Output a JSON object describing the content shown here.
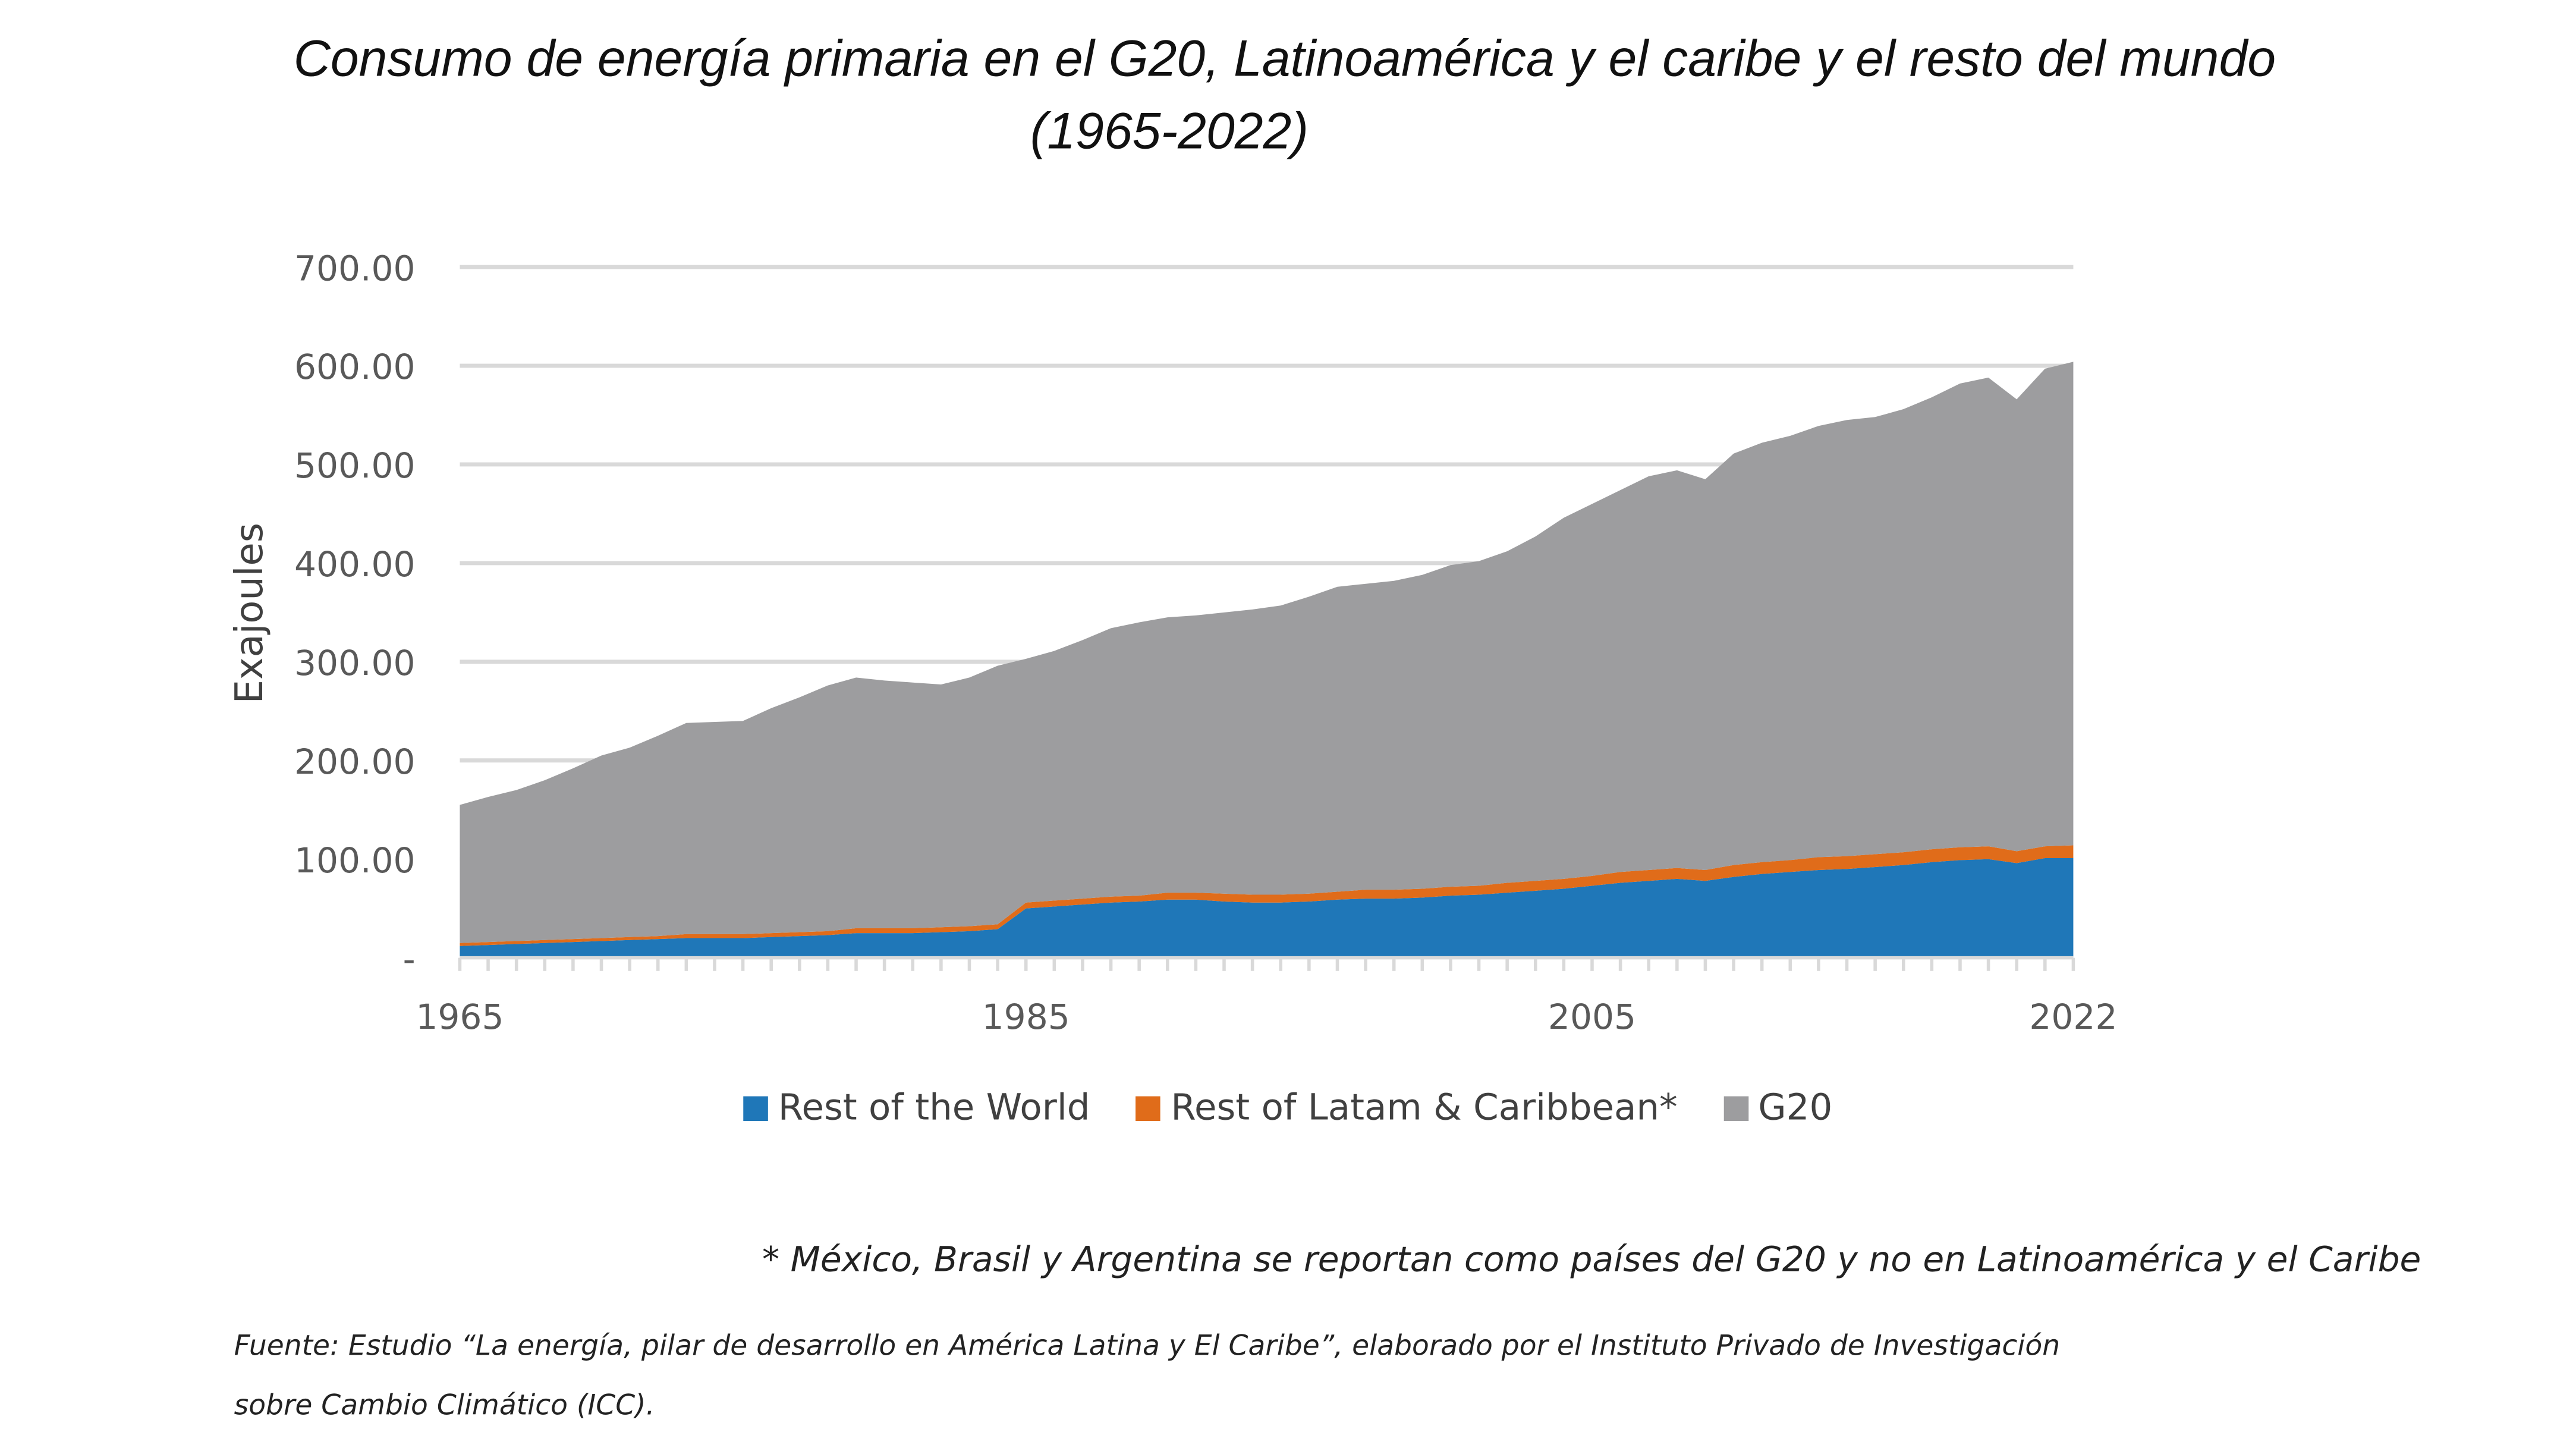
{
  "title": {
    "line1": "Consumo de energía primaria en el G20, Latinoamérica y el caribe y el resto del mundo",
    "line2": "(1965-2022)"
  },
  "chart_data": {
    "type": "area",
    "stacked": true,
    "title": "Consumo de energía primaria en el G20, Latinoamérica y el caribe y el resto del mundo (1965-2022)",
    "xlabel": "",
    "ylabel": "Exajoules",
    "x": [
      1965,
      1966,
      1967,
      1968,
      1969,
      1970,
      1971,
      1972,
      1973,
      1974,
      1975,
      1976,
      1977,
      1978,
      1979,
      1980,
      1981,
      1982,
      1983,
      1984,
      1985,
      1986,
      1987,
      1988,
      1989,
      1990,
      1991,
      1992,
      1993,
      1994,
      1995,
      1996,
      1997,
      1998,
      1999,
      2000,
      2001,
      2002,
      2003,
      2004,
      2005,
      2006,
      2007,
      2008,
      2009,
      2010,
      2011,
      2012,
      2013,
      2014,
      2015,
      2016,
      2017,
      2018,
      2019,
      2020,
      2021,
      2022
    ],
    "x_tick_labels": [
      "1965",
      "1985",
      "2005",
      "2022"
    ],
    "y_tick_labels": [
      "-",
      "100.00",
      "200.00",
      "300.00",
      "400.00",
      "500.00",
      "600.00",
      "700.00"
    ],
    "ylim": [
      0,
      700
    ],
    "grid": true,
    "legend_position": "bottom",
    "series": [
      {
        "name": "Rest of the World",
        "color": "#1f77b8",
        "values": [
          12,
          13,
          14,
          15,
          16,
          17,
          18,
          19,
          20,
          20,
          20,
          21,
          22,
          23,
          25,
          25,
          25,
          26,
          27,
          29,
          50,
          52,
          54,
          56,
          57,
          59,
          59,
          57,
          56,
          56,
          57,
          59,
          60,
          60,
          61,
          63,
          64,
          66,
          68,
          70,
          73,
          76,
          78,
          80,
          78,
          82,
          85,
          87,
          89,
          90,
          92,
          94,
          97,
          99,
          100,
          96,
          101,
          101
        ]
      },
      {
        "name": "Rest of Latam & Caribbean*",
        "color": "#e06c1a",
        "values": [
          3,
          3,
          3,
          3,
          3,
          3,
          3,
          3,
          4,
          4,
          4,
          4,
          4,
          4,
          5,
          5,
          5,
          5,
          5,
          5,
          6,
          6,
          6,
          6,
          6,
          7,
          7,
          8,
          8,
          8,
          8,
          8,
          9,
          9,
          9,
          9,
          9,
          10,
          10,
          10,
          10,
          11,
          11,
          11,
          11,
          12,
          12,
          12,
          13,
          13,
          13,
          13,
          13,
          13,
          13,
          12,
          12,
          13
        ]
      },
      {
        "name": "G20",
        "color": "#9d9d9f",
        "values": [
          140,
          147,
          153,
          162,
          173,
          185,
          192,
          203,
          214,
          215,
          216,
          228,
          238,
          249,
          254,
          251,
          249,
          246,
          252,
          262,
          247,
          253,
          262,
          272,
          277,
          279,
          281,
          285,
          289,
          293,
          301,
          309,
          310,
          313,
          318,
          326,
          329,
          336,
          349,
          366,
          377,
          387,
          399,
          403,
          396,
          417,
          425,
          430,
          437,
          442,
          443,
          449,
          458,
          470,
          475,
          458,
          484,
          490
        ]
      }
    ]
  },
  "legend": [
    {
      "label": "Rest of the World",
      "color": "#1f77b8"
    },
    {
      "label": "Rest of Latam & Caribbean*",
      "color": "#e06c1a"
    },
    {
      "label": "G20",
      "color": "#9d9d9f"
    }
  ],
  "footnote": "* México, Brasil y Argentina se reportan como países del G20 y no en Latinoamérica y el Caribe",
  "source": {
    "line1": "Fuente: Estudio “La energía, pilar de desarrollo en América Latina y El Caribe”, elaborado por el Instituto Privado de Investigación",
    "line2": "sobre Cambio Climático (ICC)."
  }
}
